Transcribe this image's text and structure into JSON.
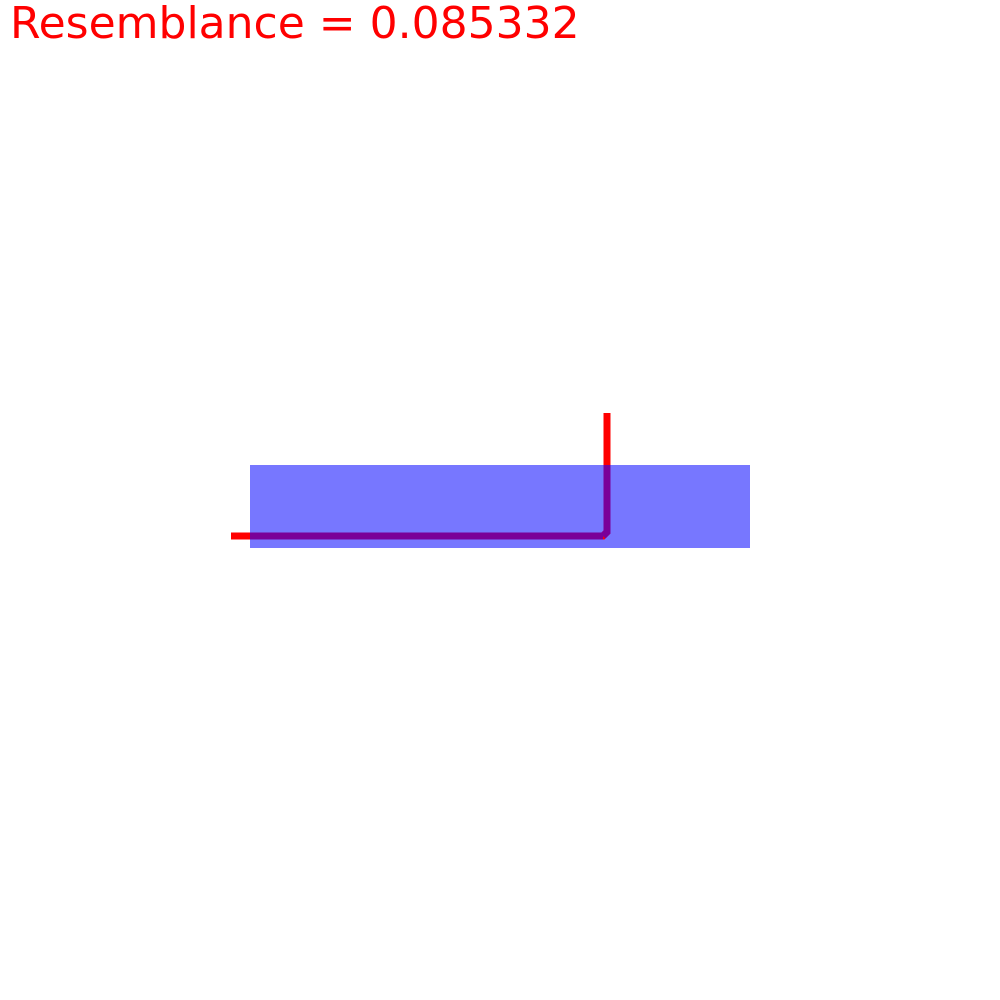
{
  "title": {
    "label": "Resemblance",
    "value": "0.085332",
    "text": "Resemblance = 0.085332"
  },
  "colors": {
    "title": "#ff0000",
    "polyline": "#ff0000",
    "rectangle_fill": "#7777ff"
  }
}
